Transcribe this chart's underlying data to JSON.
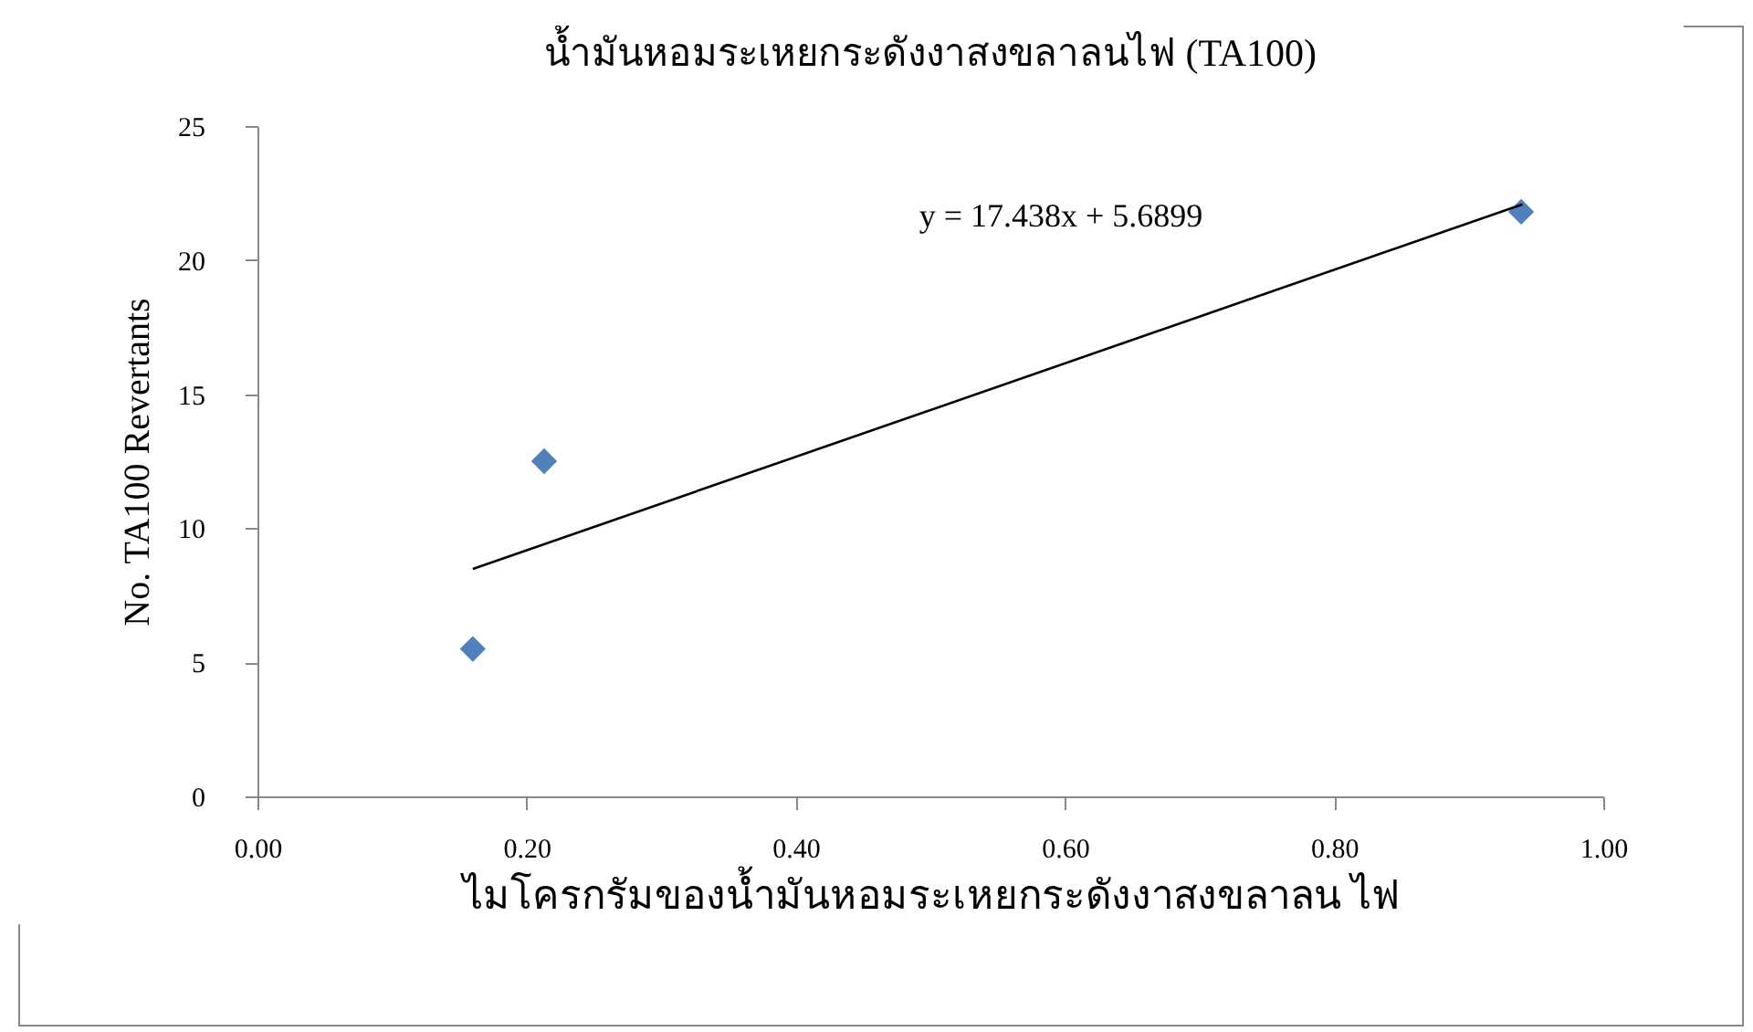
{
  "chart_data": {
    "type": "scatter",
    "title": "น้ำมันหอมระเหยกระดังงาสงขลาลนไฟ (TA100)",
    "xlabel": "ไมโครกรัมของน้ำมันหอมระเหยกระดังงาสงขลาลน ไฟ",
    "ylabel": "No. TA100 Revertants",
    "series": [
      {
        "color": "#4f81bd",
        "x": [
          0.16,
          0.213,
          0.939
        ],
        "values": [
          5.5,
          12.5,
          21.8
        ]
      },
      {
        "type": "line",
        "marker": "none",
        "color": "#000000",
        "x": [
          0.16,
          0.94
        ],
        "values": [
          8.48,
          22.08
        ]
      }
    ],
    "annotations": [
      "y = 17.438x + 5.6899"
    ],
    "xlim": [
      0,
      1
    ],
    "xticks": [
      {
        "value": 0,
        "label": "0.00"
      },
      {
        "value": 0.2,
        "label": "0.20"
      },
      {
        "value": 0.4,
        "label": "0.40"
      },
      {
        "value": 0.6,
        "label": "0.60"
      },
      {
        "value": 0.8,
        "label": "0.80"
      },
      {
        "value": 1,
        "label": "1.00"
      }
    ],
    "ylim": [
      0,
      25
    ],
    "yticks": [
      0,
      5,
      10,
      15,
      20,
      25
    ],
    "grid": false,
    "marker": "diamond"
  }
}
